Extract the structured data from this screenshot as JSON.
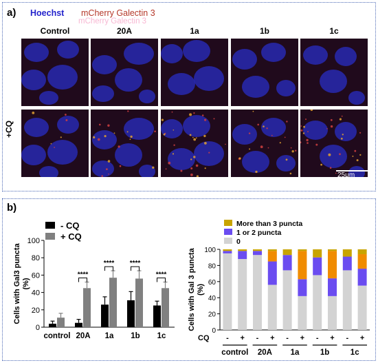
{
  "panel_a": {
    "label": "a)",
    "legend": {
      "hoechst": "Hoechst",
      "mcherry": "mCherry Galectin 3",
      "mcherry_ghost": "mCherry Galectin 3"
    },
    "columns": [
      "Control",
      "20A",
      "1a",
      "1b",
      "1c"
    ],
    "row_label": "+CQ",
    "scale_bar": "25μm",
    "colors": {
      "hoechst": "#2323cc",
      "mcherry": "#c0392b",
      "nucleus": "#2a2fd0",
      "background": "#1a0a1a"
    }
  },
  "panel_b": {
    "label": "b)",
    "chart_data": [
      {
        "type": "bar",
        "ylabel": "Cells with Gal3 puncta\n(%)",
        "categories": [
          "control",
          "20A",
          "1a",
          "1b",
          "1c"
        ],
        "ylim": [
          0,
          100
        ],
        "yticks": [
          0,
          20,
          40,
          60,
          80,
          100
        ],
        "series": [
          {
            "name": "- CQ",
            "color": "#000000",
            "values": [
              4,
              5,
              26,
              31,
              25
            ],
            "errors": [
              3,
              4,
              9,
              10,
              5
            ]
          },
          {
            "name": "+ CQ",
            "color": "#808080",
            "values": [
              11,
              45,
              57,
              56,
              45
            ],
            "errors": [
              5,
              7,
              8,
              9,
              7
            ]
          }
        ],
        "significance": [
          "",
          "****",
          "****",
          "****",
          "****"
        ]
      },
      {
        "type": "bar",
        "stacked": true,
        "ylabel": "Cells with Gal 3 puncta\n(%)",
        "ylim": [
          0,
          100
        ],
        "yticks": [
          0,
          20,
          40,
          60,
          80,
          100
        ],
        "groups": [
          "control",
          "20A",
          "1a",
          "1b",
          "1c"
        ],
        "cq_row_label": "CQ",
        "cq_signs": [
          "-",
          "+",
          "-",
          "+",
          "-",
          "+",
          "-",
          "+",
          "-",
          "+"
        ],
        "legend": [
          "More than 3 puncta",
          "1 or 2 puncta",
          "0"
        ],
        "series": [
          {
            "name": "0",
            "color": "#d3d3d3",
            "values": [
              95,
              88,
              93,
              56,
              74,
              42,
              68,
              42,
              74,
              55
            ]
          },
          {
            "name": "1 or 2 puncta",
            "color": "#6a4cf0",
            "values": [
              3,
              10,
              5,
              29,
              19,
              21,
              22,
              22,
              17,
              21
            ]
          },
          {
            "name": "More than 3 puncta",
            "color": "#f08c00",
            "values": [
              0,
              0,
              0,
              13,
              0,
              35,
              0,
              34,
              0,
              18
            ]
          },
          {
            "name": "More than 3 puncta",
            "color": "#c8a400",
            "values": [
              2,
              2,
              2,
              2,
              7,
              2,
              10,
              2,
              9,
              6
            ]
          }
        ]
      }
    ]
  }
}
